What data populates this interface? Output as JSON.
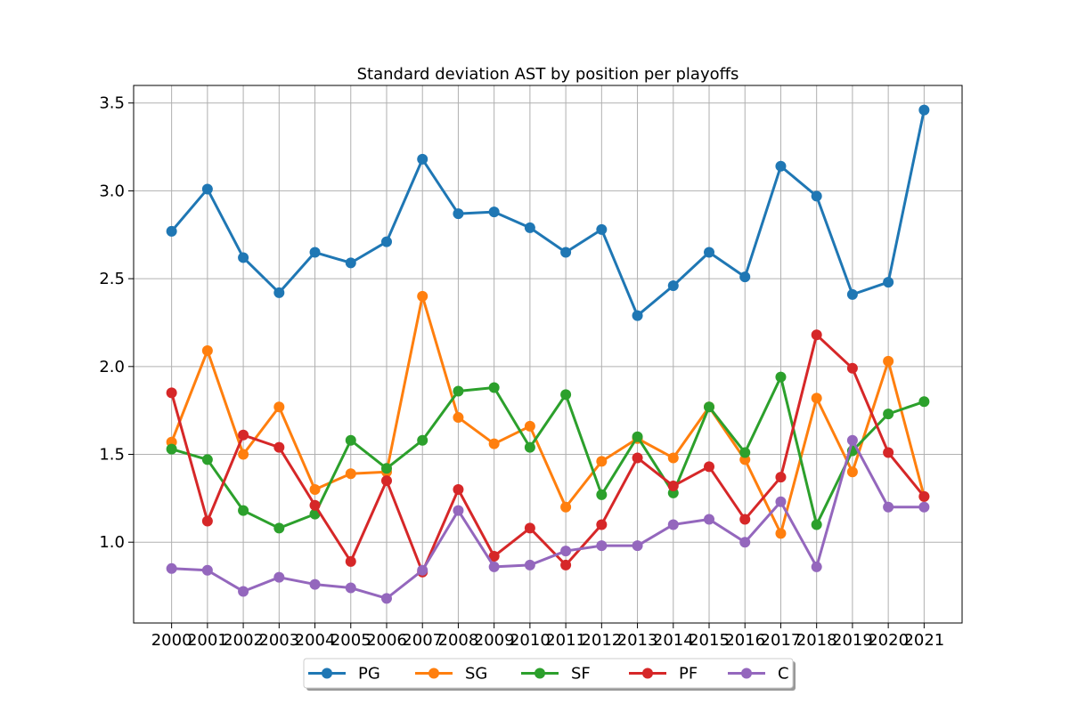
{
  "chart_data": {
    "type": "line",
    "title": "Standard deviation AST by position per playoffs",
    "xlabel": "",
    "ylabel": "",
    "categories": [
      "2000",
      "2001",
      "2002",
      "2003",
      "2004",
      "2005",
      "2006",
      "2007",
      "2008",
      "2009",
      "2010",
      "2011",
      "2012",
      "2013",
      "2014",
      "2015",
      "2016",
      "2017",
      "2018",
      "2019",
      "2020",
      "2021"
    ],
    "y_ticks": [
      "1.0",
      "1.5",
      "2.0",
      "2.5",
      "3.0",
      "3.5"
    ],
    "ylim": [
      0.54,
      3.6
    ],
    "grid": true,
    "legend_position": "bottom-center",
    "series": [
      {
        "name": "PG",
        "color": "#1f77b4",
        "values": [
          2.77,
          3.01,
          2.62,
          2.42,
          2.65,
          2.59,
          2.71,
          3.18,
          2.87,
          2.88,
          2.79,
          2.65,
          2.78,
          2.29,
          2.46,
          2.65,
          2.51,
          3.14,
          2.97,
          2.41,
          2.48,
          3.46
        ]
      },
      {
        "name": "SG",
        "color": "#ff7f0e",
        "values": [
          1.57,
          2.09,
          1.5,
          1.77,
          1.3,
          1.39,
          1.4,
          2.4,
          1.71,
          1.56,
          1.66,
          1.2,
          1.46,
          1.59,
          1.48,
          1.77,
          1.47,
          1.05,
          1.82,
          1.4,
          2.03,
          1.26
        ]
      },
      {
        "name": "SF",
        "color": "#2ca02c",
        "values": [
          1.53,
          1.47,
          1.18,
          1.08,
          1.16,
          1.58,
          1.42,
          1.58,
          1.86,
          1.88,
          1.54,
          1.84,
          1.27,
          1.6,
          1.28,
          1.77,
          1.51,
          1.94,
          1.1,
          1.52,
          1.73,
          1.8
        ]
      },
      {
        "name": "PF",
        "color": "#d62728",
        "values": [
          1.85,
          1.12,
          1.61,
          1.54,
          1.21,
          0.89,
          1.35,
          0.83,
          1.3,
          0.92,
          1.08,
          0.87,
          1.1,
          1.48,
          1.32,
          1.43,
          1.13,
          1.37,
          2.18,
          1.99,
          1.51,
          1.26
        ]
      },
      {
        "name": "C",
        "color": "#9467bd",
        "values": [
          0.85,
          0.84,
          0.72,
          0.8,
          0.76,
          0.74,
          0.68,
          0.84,
          1.18,
          0.86,
          0.87,
          0.95,
          0.98,
          0.98,
          1.1,
          1.13,
          1.0,
          1.23,
          0.86,
          1.58,
          1.2,
          1.2
        ]
      }
    ]
  }
}
